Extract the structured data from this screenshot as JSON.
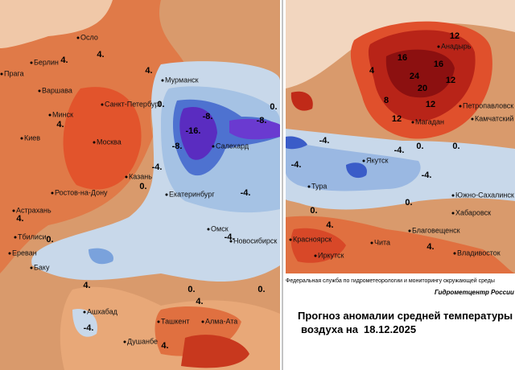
{
  "left_map": {
    "cities": [
      "Осло",
      "Берлин",
      "Прага",
      "Варшава",
      "Минск",
      "Санкт-Петербург",
      "Мурманск",
      "Киев",
      "Москва",
      "Салехард",
      "Казань",
      "Екатеринбург",
      "Ростов-на-Дону",
      "Астрахань",
      "Тбилиси",
      "Ереван",
      "Омск",
      "Новосибирск",
      "Баку",
      "Ашхабад",
      "Ташкент",
      "Алма-Ата",
      "Душанбе"
    ],
    "contour_labels": [
      "4.",
      "4.",
      "4.",
      "4.",
      "0.",
      "-8.",
      "-16.",
      "-8.",
      "-8.",
      "-4.",
      "0.",
      "-4.",
      "4.",
      "0.",
      "-4.",
      "0.",
      "0.",
      "4.",
      "4.",
      "-4.",
      "4.",
      "0."
    ]
  },
  "right_map": {
    "cities": [
      "Анадырь",
      "Петропавловск",
      "Камчатский",
      "Магадан",
      "Якутск",
      "Тура",
      "Южно-Сахалинск",
      "Хабаровск",
      "Благовещенск",
      "Красноярск",
      "Чита",
      "Иркутск",
      "Владивосток"
    ],
    "contour_labels": [
      "12",
      "16",
      "16",
      "24",
      "20",
      "12",
      "12",
      "12",
      "8",
      "4",
      "0.",
      "0.",
      "-4.",
      "-4.",
      "-4.",
      "-4.",
      "0.",
      "0.",
      "4.",
      "4."
    ]
  },
  "footer": {
    "agency": "Федеральная служба по гидрометеорологии и мониторингу окружающей среды",
    "center": "Гидрометцентр России"
  },
  "title": {
    "line1": "Прогноз аномалии средней температуры",
    "line2": "воздуха на",
    "date": "18.12.2025"
  }
}
